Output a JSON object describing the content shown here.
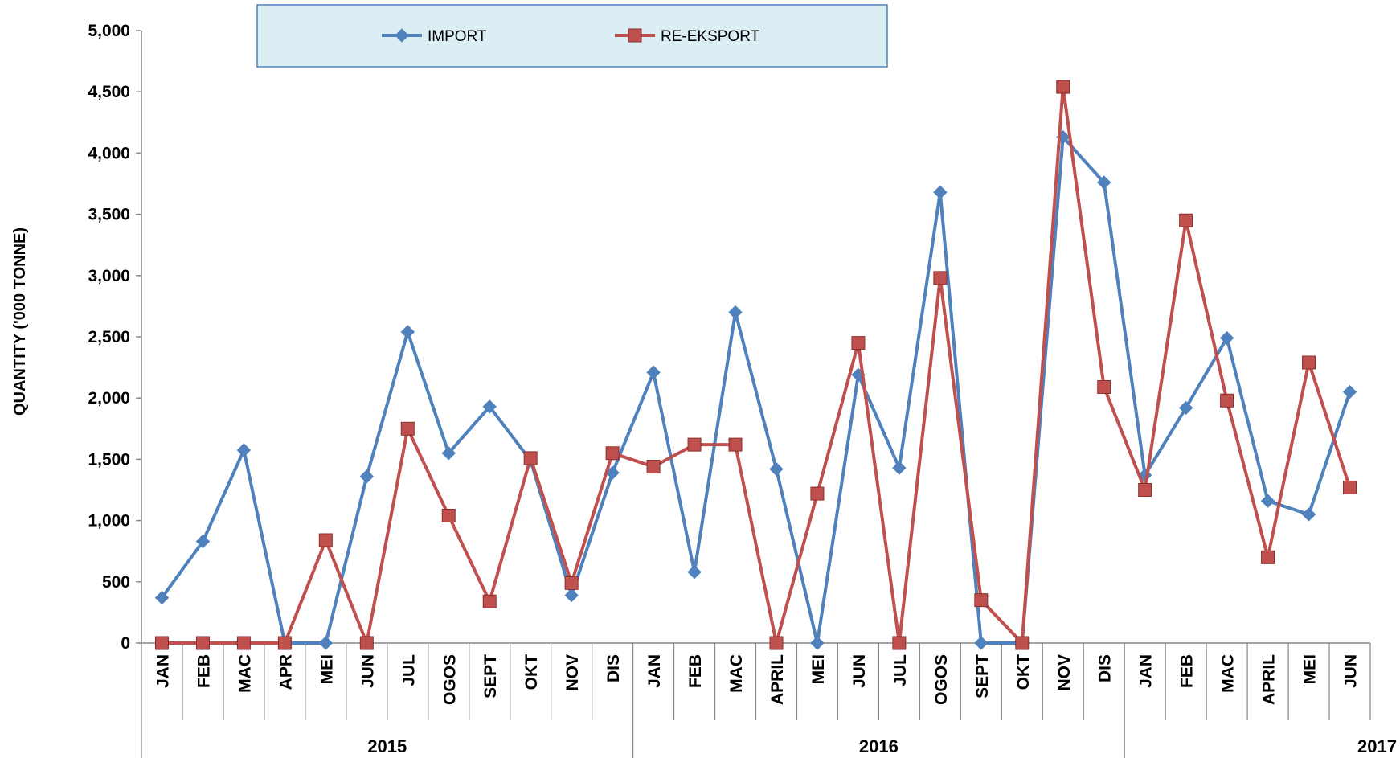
{
  "chart_data": {
    "type": "line",
    "ylabel": "QUANTITY ('000 TONNE)",
    "ylim": [
      0,
      5000
    ],
    "yticks": [
      "0",
      "500",
      "1,000",
      "1,500",
      "2,000",
      "2,500",
      "3,000",
      "3,500",
      "4,000",
      "4,500",
      "5,000"
    ],
    "categories": [
      "JAN",
      "FEB",
      "MAC",
      "APR",
      "MEI",
      "JUN",
      "JUL",
      "OGOS",
      "SEPT",
      "OKT",
      "NOV",
      "DIS",
      "JAN",
      "FEB",
      "MAC",
      "APRIL",
      "MEI",
      "JUN",
      "JUL",
      "OGOS",
      "SEPT",
      "OKT",
      "NOV",
      "DIS",
      "JAN",
      "FEB",
      "MAC",
      "APRIL",
      "MEI",
      "JUN"
    ],
    "groups": [
      {
        "label": "2015",
        "count": 12
      },
      {
        "label": "2016",
        "count": 12
      },
      {
        "label": "2017",
        "count": 6
      }
    ],
    "legend_position": "top",
    "series": [
      {
        "name": "IMPORT",
        "color": "#4f81bd",
        "marker": "diamond",
        "values": [
          370,
          830,
          1575,
          0,
          0,
          1360,
          2540,
          1550,
          1930,
          1490,
          390,
          1390,
          2210,
          580,
          2700,
          1420,
          0,
          2190,
          1430,
          3680,
          0,
          0,
          4130,
          3760,
          1370,
          1920,
          2490,
          1160,
          1050,
          2050
        ]
      },
      {
        "name": "RE-EKSPORT",
        "color": "#c0504d",
        "marker": "square",
        "values": [
          0,
          0,
          0,
          0,
          840,
          0,
          1750,
          1040,
          340,
          1510,
          490,
          1550,
          1440,
          1620,
          1620,
          0,
          1220,
          2450,
          0,
          2980,
          350,
          0,
          4540,
          2090,
          1250,
          3450,
          1980,
          700,
          2290,
          1270
        ]
      }
    ]
  }
}
